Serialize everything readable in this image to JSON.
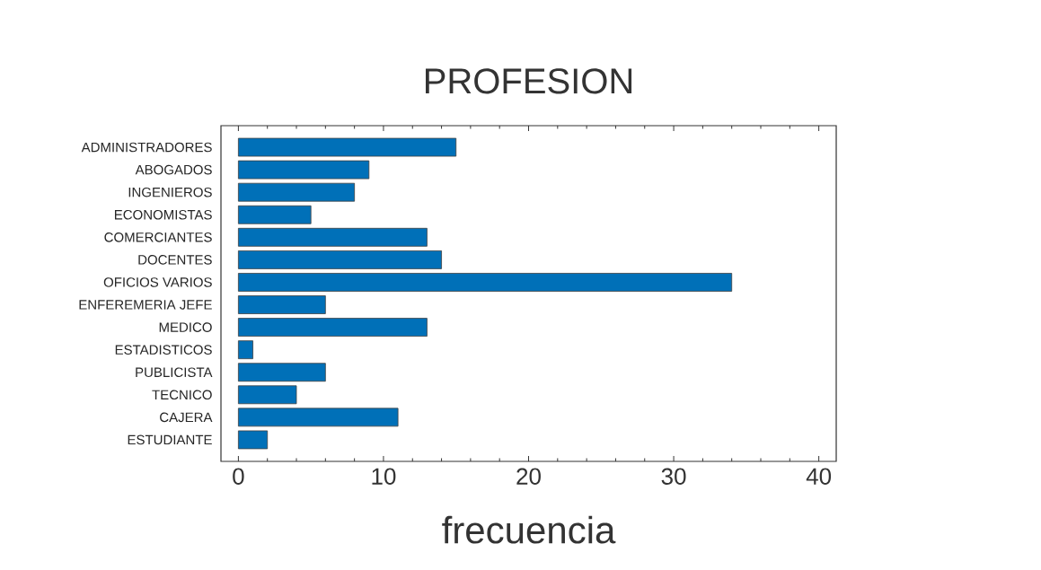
{
  "chart_data": {
    "type": "bar",
    "orientation": "horizontal",
    "title": "PROFESION",
    "xlabel": "frecuencia",
    "categories": [
      "ADMINISTRADORES",
      "ABOGADOS",
      "INGENIEROS",
      "ECONOMISTAS",
      "COMERCIANTES",
      "DOCENTES",
      "OFICIOS VARIOS",
      "ENFEREMERIA JEFE",
      "MEDICO",
      "ESTADISTICOS",
      "PUBLICISTA",
      "TECNICO",
      "CAJERA",
      "ESTUDIANTE"
    ],
    "values": [
      15,
      9,
      8,
      5,
      13,
      14,
      34,
      6,
      13,
      1,
      6,
      4,
      11,
      2
    ],
    "color": "#0070b8",
    "xlim": [
      -1.2,
      41.2
    ],
    "xticks": [
      0,
      {
        "value": 2,
        "label": null
      },
      {
        "value": 4,
        "label": null
      },
      {
        "value": 6,
        "label": null
      },
      {
        "value": 8,
        "label": null
      },
      10,
      {
        "value": 12,
        "label": null
      },
      {
        "value": 14,
        "label": null
      },
      {
        "value": 16,
        "label": null
      },
      {
        "value": 18,
        "label": null
      },
      20,
      {
        "value": 22,
        "label": null
      },
      {
        "value": 24,
        "label": null
      },
      {
        "value": 26,
        "label": null
      },
      {
        "value": 28,
        "label": null
      },
      30,
      {
        "value": 32,
        "label": null
      },
      {
        "value": 34,
        "label": null
      },
      {
        "value": 36,
        "label": null
      },
      {
        "value": 38,
        "label": null
      },
      40
    ],
    "grid": false
  }
}
